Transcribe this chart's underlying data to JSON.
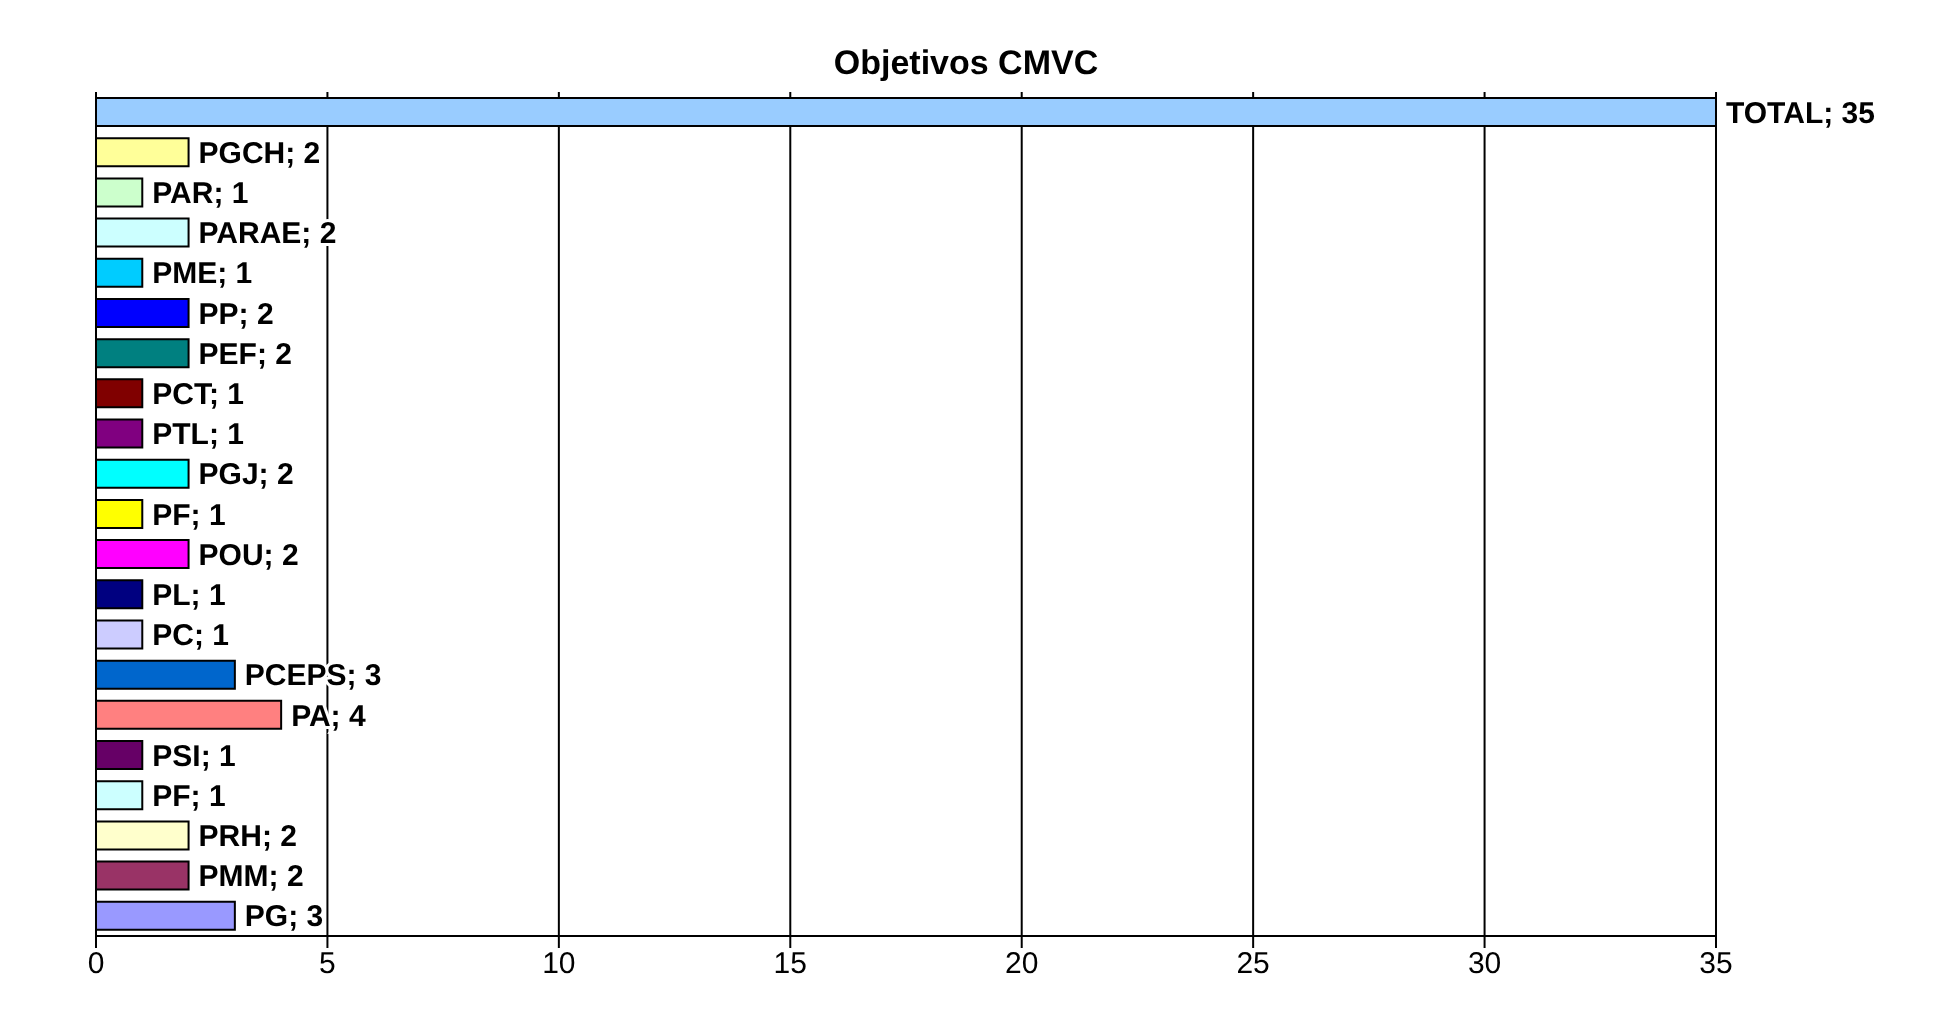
{
  "chart_data": {
    "type": "bar",
    "orientation": "horizontal",
    "title": "Objetivos CMVC",
    "categories": [
      null,
      null,
      null,
      null,
      null,
      null,
      null,
      null,
      null,
      null,
      null,
      null,
      null,
      null,
      null,
      null,
      null,
      null,
      null,
      null,
      null
    ],
    "values": [
      35,
      2,
      1,
      2,
      1,
      2,
      2,
      1,
      1,
      2,
      1,
      2,
      1,
      1,
      3,
      4,
      1,
      1,
      2,
      2,
      3
    ],
    "colors": [
      "#99ccff",
      "#ffff99",
      "#ccffcc",
      "#ccffff",
      "#00ccff",
      "#0000ff",
      "#008080",
      "#800000",
      "#800080",
      "#00ffff",
      "#ffff00",
      "#ff00ff",
      "#000080",
      "#ccccff",
      "#0066cc",
      "#ff8080",
      "#660066",
      "#ccffff",
      "#ffffcc",
      "#993366",
      "#9999ff"
    ],
    "value_labels": [
      "TOTAL; 35",
      "PGCH; 2",
      "PAR; 1",
      "PARAE; 2",
      "PME; 1",
      "PP; 2",
      "PEF; 2",
      "PCT; 1",
      "PTL; 1",
      "PGJ; 2",
      "PF; 1",
      "POU; 2",
      "PL; 1",
      "PC; 1",
      "PCEPS; 3",
      "PA; 4",
      "PSI; 1",
      "PF; 1",
      "PRH; 2",
      "PMM; 2",
      "PG; 3"
    ],
    "xlim": [
      0,
      35
    ],
    "xticks": [
      0,
      5,
      10,
      15,
      20,
      25,
      30,
      35
    ],
    "grid": "x",
    "tick_labels": "x"
  }
}
